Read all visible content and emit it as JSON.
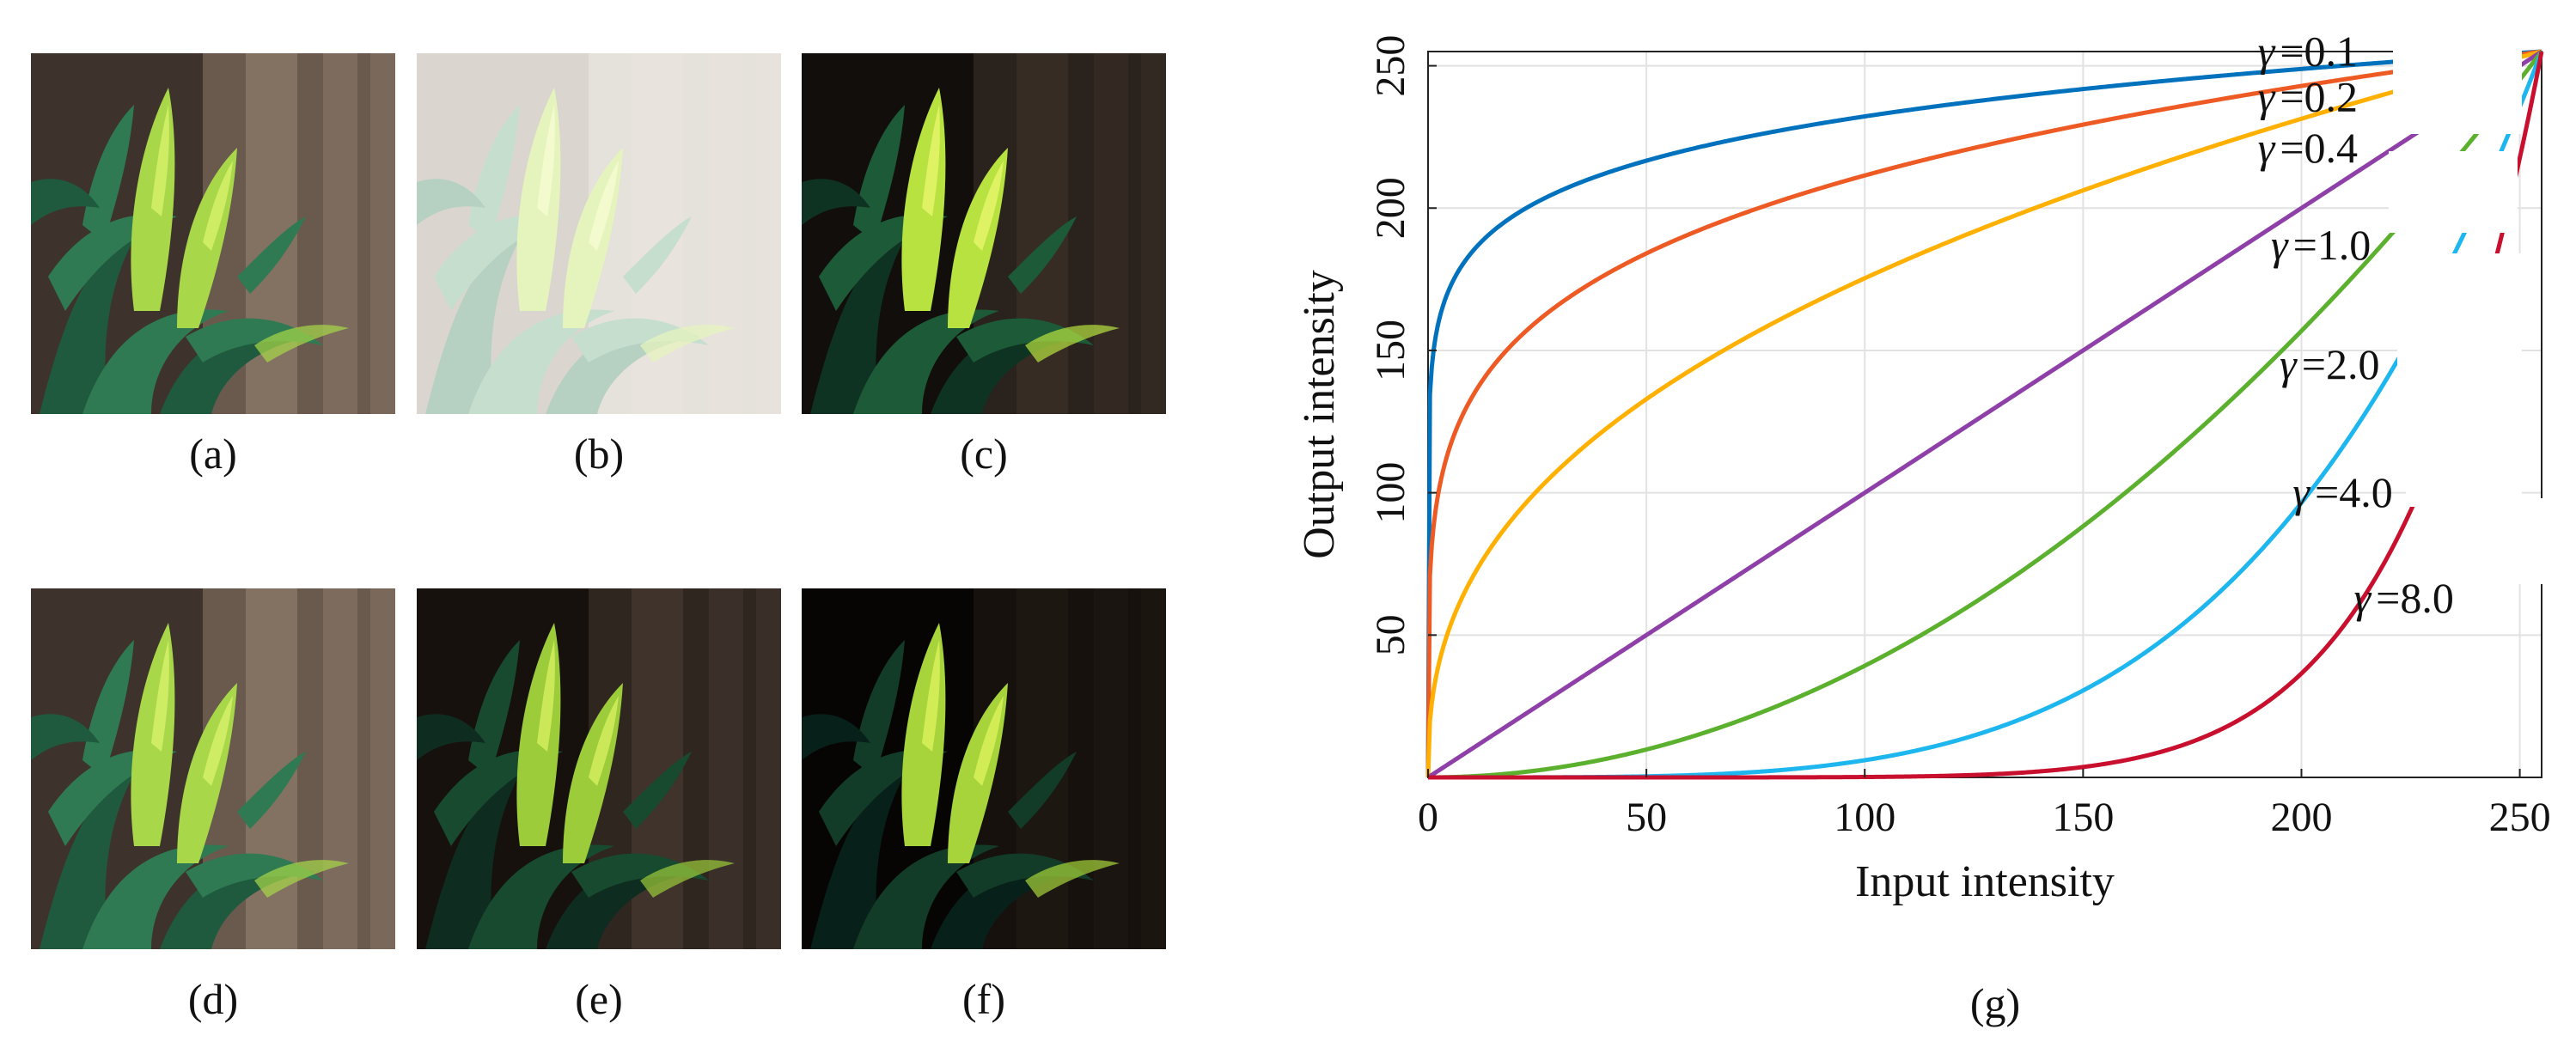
{
  "figure": {
    "panels": [
      {
        "caption": "(a)",
        "variant": "original"
      },
      {
        "caption": "(b)",
        "variant": "hazy"
      },
      {
        "caption": "(c)",
        "variant": "dark"
      },
      {
        "caption": "(d)",
        "variant": "original"
      },
      {
        "caption": "(e)",
        "variant": "darker"
      },
      {
        "caption": "(f)",
        "variant": "darkest"
      }
    ],
    "chart_caption": "(g)"
  },
  "chart_data": {
    "type": "line",
    "xlabel": "Input intensity",
    "ylabel": "Output intensity",
    "xlim": [
      0,
      255
    ],
    "ylim": [
      0,
      255
    ],
    "x_ticks": [
      0,
      50,
      100,
      150,
      200,
      250
    ],
    "y_ticks": [
      50,
      100,
      150,
      200,
      250
    ],
    "grid": true,
    "formula": "output = 255 * (input / 255) ^ gamma",
    "series": [
      {
        "name": "γ =0.1",
        "gamma": 0.1,
        "color": "#0072BD",
        "label": "γ =0.1"
      },
      {
        "name": "γ =0.2",
        "gamma": 0.2,
        "color": "#EE5A24",
        "label": "γ =0.2"
      },
      {
        "name": "γ =0.4",
        "gamma": 0.4,
        "color": "#FFB000",
        "label": "γ =0.4"
      },
      {
        "name": "γ =1.0",
        "gamma": 1.0,
        "color": "#8E3FA8",
        "label": "γ =1.0"
      },
      {
        "name": "γ =2.0",
        "gamma": 2.0,
        "color": "#5BB02E",
        "label": "γ =2.0"
      },
      {
        "name": "γ =4.0",
        "gamma": 4.0,
        "color": "#1DB6EE",
        "label": "γ =4.0"
      },
      {
        "name": "γ =8.0",
        "gamma": 8.0,
        "color": "#C8102E",
        "label": "γ =8.0"
      }
    ]
  }
}
